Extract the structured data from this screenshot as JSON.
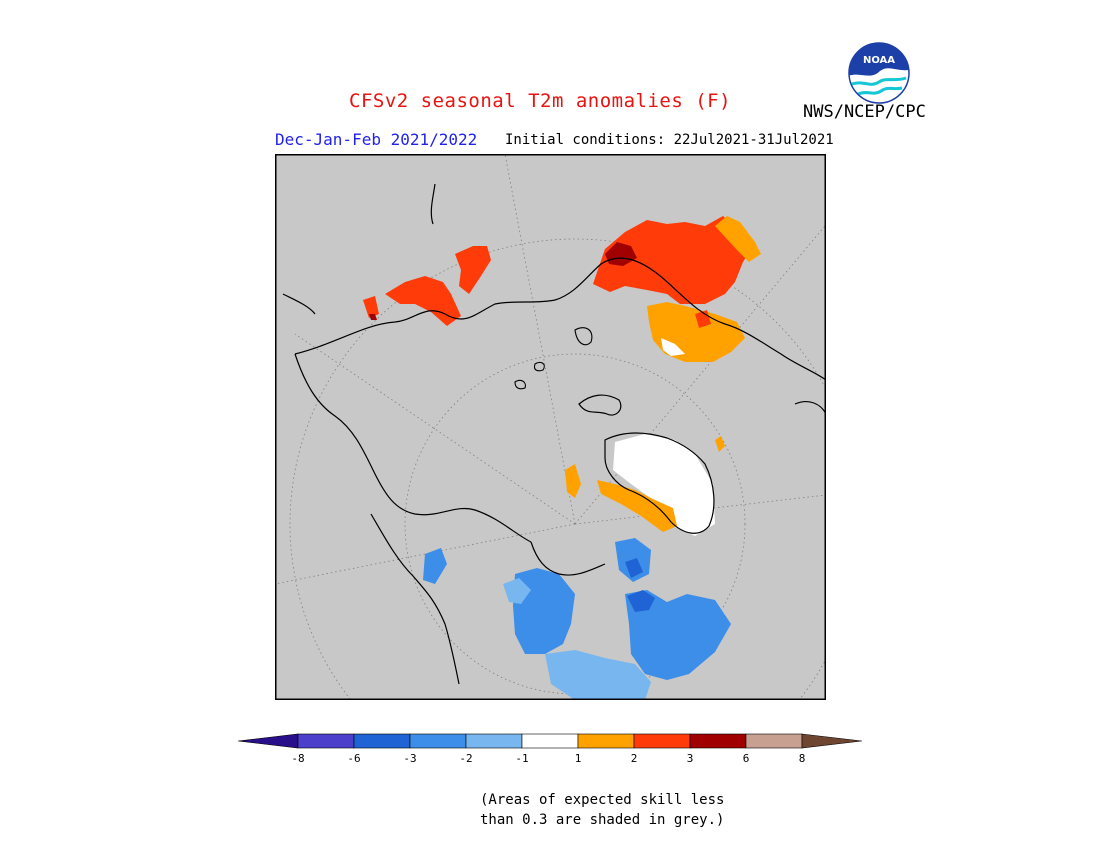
{
  "header": {
    "title": "CFSv2 seasonal T2m anomalies (F)",
    "organization": "NWS/NCEP/CPC",
    "season": "Dec-Jan-Feb 2021/2022",
    "initial_conditions": "Initial conditions: 22Jul2021-31Jul2021"
  },
  "logo": {
    "text": "NOAA",
    "icon": "noaa-logo-icon"
  },
  "map": {
    "projection": "north-polar-stereographic",
    "background_color": "#c8c8c8",
    "masked_color": "#c8c8c8",
    "region": "Northern Hemisphere high latitudes"
  },
  "legend": {
    "bins": [
      {
        "range": "< -8",
        "color": "#2a0f8a"
      },
      {
        "range": "-8 to -6",
        "color": "#4b3fcc"
      },
      {
        "range": "-6 to -3",
        "color": "#1f63d4"
      },
      {
        "range": "-3 to -2",
        "color": "#3c8ee8"
      },
      {
        "range": "-2 to -1",
        "color": "#78b6f0"
      },
      {
        "range": "-1 to 1",
        "color": "#ffffff"
      },
      {
        "range": "1 to 2",
        "color": "#ffa200"
      },
      {
        "range": "2 to 3",
        "color": "#ff3b0a"
      },
      {
        "range": "3 to 6",
        "color": "#a00000"
      },
      {
        "range": "6 to 8",
        "color": "#c8a092"
      },
      {
        "range": "> 8",
        "color": "#6e4530"
      }
    ],
    "tick_labels": [
      "-8",
      "-6",
      "-3",
      "-2",
      "-1",
      "1",
      "2",
      "3",
      "6",
      "8"
    ]
  },
  "footnote": {
    "line1": "(Areas of expected skill less",
    "line2": "than 0.3 are shaded in grey.)"
  }
}
